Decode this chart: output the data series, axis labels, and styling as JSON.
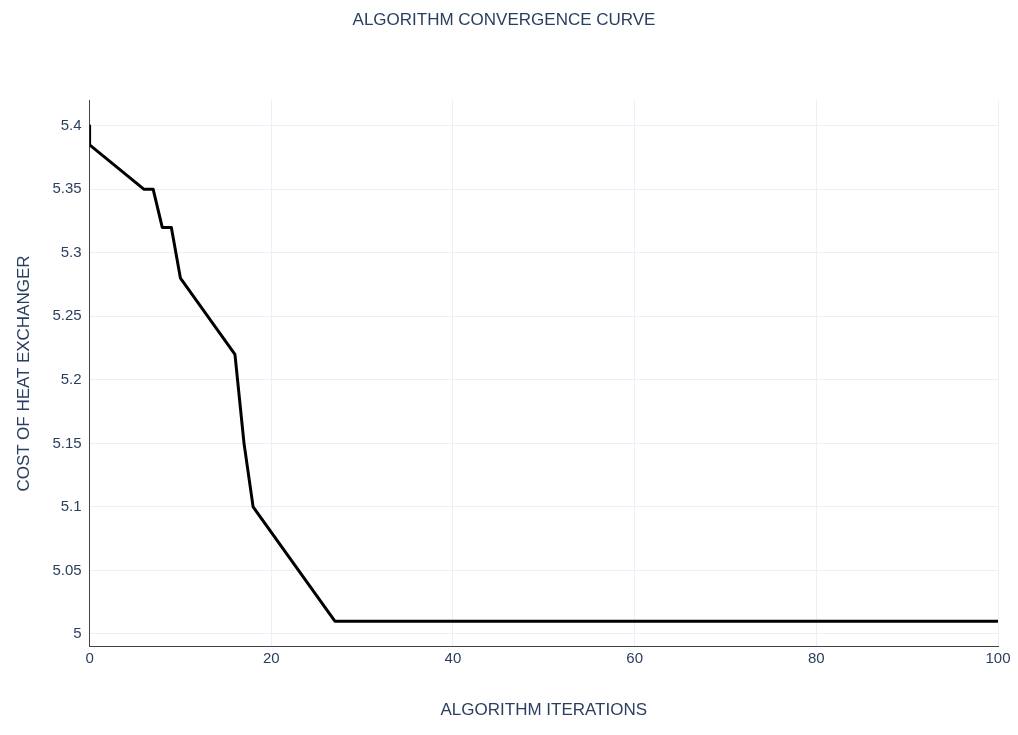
{
  "chart_data": {
    "type": "line",
    "title": "ALGORITHM CONVERGENCE CURVE",
    "xlabel": "ALGORITHM ITERATIONS",
    "ylabel": "COST OF HEAT EXCHANGER",
    "series": [
      {
        "color": "#000000",
        "x": [
          0,
          0,
          6,
          7,
          8,
          9,
          10,
          16,
          17,
          18,
          27,
          100
        ],
        "values": [
          5.4,
          5.385,
          5.35,
          5.35,
          5.32,
          5.32,
          5.28,
          5.22,
          5.15,
          5.1,
          5.01,
          5.01
        ]
      }
    ],
    "xlim": [
      0,
      100
    ],
    "xticks": [
      0,
      20,
      40,
      60,
      80,
      100
    ],
    "ylim": [
      4.99,
      5.42
    ],
    "yticks": [
      5,
      5.05,
      5.1,
      5.15,
      5.2,
      5.25,
      5.3,
      5.35,
      5.4
    ],
    "grid": true,
    "marker": "none",
    "line_style": "solid"
  }
}
